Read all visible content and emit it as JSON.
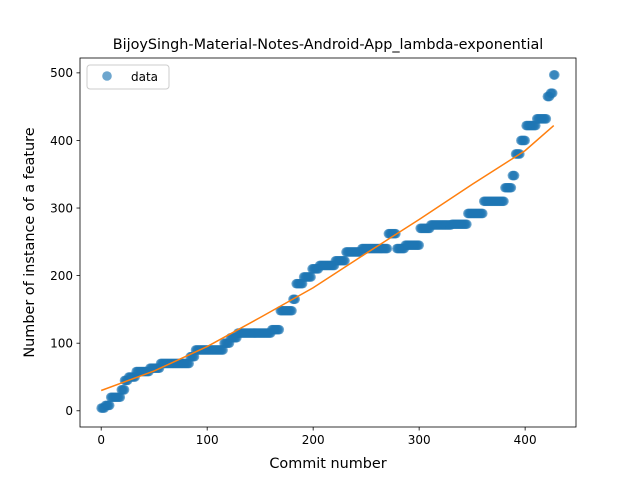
{
  "chart_data": {
    "type": "scatter",
    "title": "BijoySingh-Material-Notes-Android-App_lambda-exponential",
    "xlabel": "Commit number",
    "ylabel": "Number of instance of a feature",
    "xlim": [
      -20,
      448
    ],
    "ylim": [
      -24,
      522
    ],
    "x_ticks": [
      0,
      100,
      200,
      300,
      400
    ],
    "y_ticks": [
      0,
      100,
      200,
      300,
      400,
      500
    ],
    "grid": false,
    "legend": {
      "placement": "top-left",
      "entries": [
        "data"
      ]
    },
    "colors": {
      "points": "#1f77b4",
      "fit": "#ff7f0e"
    },
    "series": [
      {
        "name": "data",
        "kind": "scatter",
        "segments": [
          [
            0,
            3,
            4
          ],
          [
            4,
            8,
            8
          ],
          [
            9,
            18,
            20
          ],
          [
            19,
            22,
            31
          ],
          [
            22,
            25,
            45
          ],
          [
            26,
            32,
            50
          ],
          [
            33,
            45,
            58
          ],
          [
            46,
            55,
            63
          ],
          [
            56,
            83,
            70
          ],
          [
            84,
            88,
            80
          ],
          [
            89,
            115,
            90
          ],
          [
            116,
            121,
            100
          ],
          [
            122,
            128,
            108
          ],
          [
            129,
            160,
            115
          ],
          [
            161,
            168,
            120
          ],
          [
            169,
            180,
            148
          ],
          [
            181,
            183,
            165
          ],
          [
            184,
            190,
            188
          ],
          [
            191,
            198,
            198
          ],
          [
            199,
            205,
            210
          ],
          [
            206,
            220,
            215
          ],
          [
            221,
            230,
            222
          ],
          [
            231,
            245,
            235
          ],
          [
            246,
            270,
            240
          ],
          [
            271,
            278,
            262
          ],
          [
            279,
            286,
            240
          ],
          [
            287,
            300,
            245
          ],
          [
            301,
            310,
            270
          ],
          [
            311,
            330,
            275
          ],
          [
            331,
            345,
            276
          ],
          [
            346,
            360,
            292
          ],
          [
            361,
            380,
            310
          ],
          [
            381,
            387,
            330
          ],
          [
            388,
            390,
            348
          ],
          [
            391,
            395,
            380
          ],
          [
            396,
            400,
            400
          ],
          [
            401,
            410,
            422
          ],
          [
            411,
            420,
            432
          ],
          [
            421,
            423,
            465
          ],
          [
            424,
            426,
            470
          ],
          [
            427,
            428,
            497
          ]
        ]
      },
      {
        "name": "",
        "kind": "line",
        "x": [
          0,
          50,
          100,
          150,
          200,
          250,
          300,
          350,
          400,
          427
        ],
        "y": [
          30,
          59,
          95,
          138,
          182,
          233,
          283,
          335,
          385,
          422
        ]
      }
    ]
  }
}
